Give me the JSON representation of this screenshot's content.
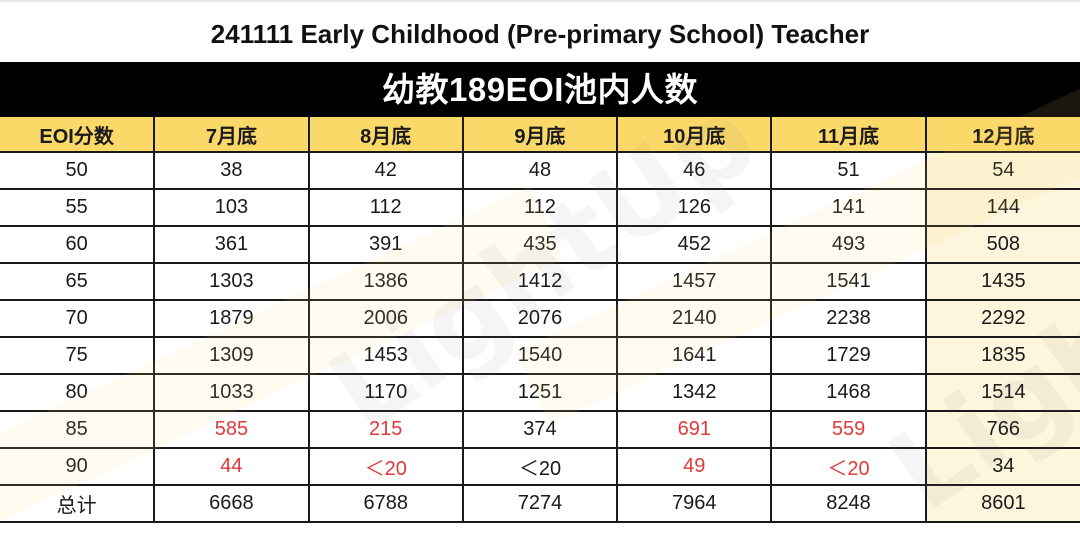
{
  "title": "241111 Early Childhood (Pre-primary School) Teacher",
  "banner": "幼教189EOI池内人数",
  "table": {
    "headers": [
      "EOI分数",
      "7月底",
      "8月底",
      "9月底",
      "10月底",
      "11月底",
      "12月底"
    ],
    "rows": [
      {
        "score": "50",
        "values": [
          "38",
          "42",
          "48",
          "46",
          "51",
          "54"
        ],
        "red": [
          false,
          false,
          false,
          false,
          false,
          false
        ]
      },
      {
        "score": "55",
        "values": [
          "103",
          "112",
          "112",
          "126",
          "141",
          "144"
        ],
        "red": [
          false,
          false,
          false,
          false,
          false,
          false
        ]
      },
      {
        "score": "60",
        "values": [
          "361",
          "391",
          "435",
          "452",
          "493",
          "508"
        ],
        "red": [
          false,
          false,
          false,
          false,
          false,
          false
        ]
      },
      {
        "score": "65",
        "values": [
          "1303",
          "1386",
          "1412",
          "1457",
          "1541",
          "1435"
        ],
        "red": [
          false,
          false,
          false,
          false,
          false,
          false
        ]
      },
      {
        "score": "70",
        "values": [
          "1879",
          "2006",
          "2076",
          "2140",
          "2238",
          "2292"
        ],
        "red": [
          false,
          false,
          false,
          false,
          false,
          false
        ]
      },
      {
        "score": "75",
        "values": [
          "1309",
          "1453",
          "1540",
          "1641",
          "1729",
          "1835"
        ],
        "red": [
          false,
          false,
          false,
          false,
          false,
          false
        ]
      },
      {
        "score": "80",
        "values": [
          "1033",
          "1170",
          "1251",
          "1342",
          "1468",
          "1514"
        ],
        "red": [
          false,
          false,
          false,
          false,
          false,
          false
        ]
      },
      {
        "score": "85",
        "values": [
          "585",
          "215",
          "374",
          "691",
          "559",
          "766"
        ],
        "red": [
          true,
          true,
          false,
          true,
          true,
          false
        ]
      },
      {
        "score": "90",
        "values": [
          "44",
          "＜20",
          "＜20",
          "49",
          "＜20",
          "34"
        ],
        "red": [
          true,
          true,
          false,
          true,
          true,
          false
        ]
      },
      {
        "score": "总计",
        "values": [
          "6668",
          "6788",
          "7274",
          "7964",
          "8248",
          "8601"
        ],
        "red": [
          false,
          false,
          false,
          false,
          false,
          false
        ]
      }
    ]
  },
  "watermark": "LightUp",
  "colors": {
    "header_bg": "#fbd968",
    "highlight_col_bg": "#fdf5dc",
    "red_text": "#e03a3a",
    "banner_bg": "#000000"
  }
}
